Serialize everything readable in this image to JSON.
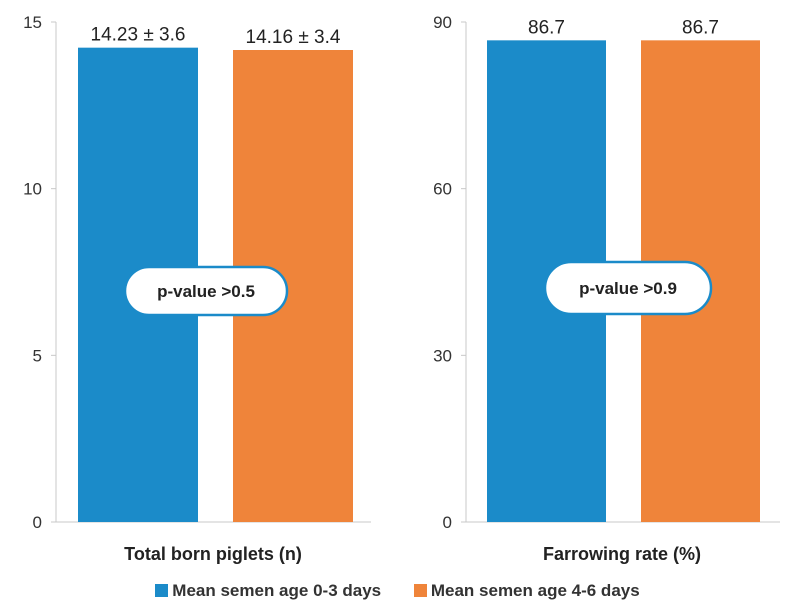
{
  "chart_data": [
    {
      "type": "bar",
      "categories": [
        "Mean semen age 0-3 days",
        "Mean semen age 4-6 days"
      ],
      "values": [
        14.23,
        14.16
      ],
      "data_labels": [
        "14.23 ± 3.6",
        "14.16 ± 3.4"
      ],
      "xlabel": "Total born piglets (n)",
      "ylabel": "",
      "ylim": [
        0,
        15
      ],
      "yticks": [
        "0",
        "5",
        "10",
        "15"
      ],
      "annotation": "p-value >0.5"
    },
    {
      "type": "bar",
      "categories": [
        "Mean semen age 0-3 days",
        "Mean semen age 4-6 days"
      ],
      "values": [
        86.7,
        86.7
      ],
      "data_labels": [
        "86.7",
        "86.7"
      ],
      "xlabel": "Farrowing rate (%)",
      "ylabel": "",
      "ylim": [
        0,
        90
      ],
      "yticks": [
        "0",
        "30",
        "60",
        "90"
      ],
      "annotation": "p-value >0.9"
    }
  ],
  "legend": {
    "position": "bottom",
    "items": [
      {
        "label": "Mean semen age 0-3 days",
        "color": "#1b8bc9"
      },
      {
        "label": "Mean semen age 4-6 days",
        "color": "#ef843a"
      }
    ]
  },
  "colors": [
    "#1b8bc9",
    "#ef843a"
  ]
}
